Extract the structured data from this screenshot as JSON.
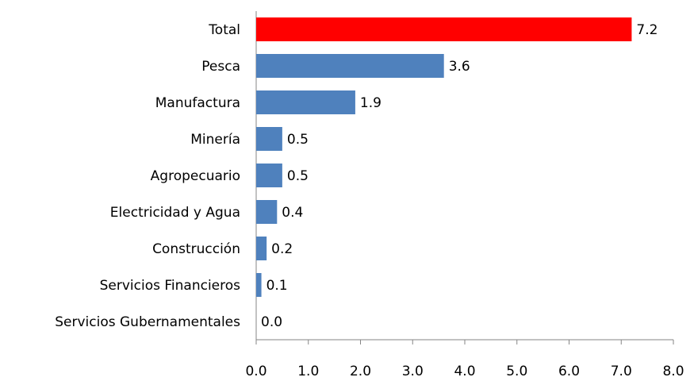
{
  "chart_data": {
    "type": "bar",
    "orientation": "horizontal",
    "categories": [
      "Total",
      "Pesca",
      "Manufactura",
      "Minería",
      "Agropecuario",
      "Electricidad y Agua",
      "Construcción",
      "Servicios Financieros",
      "Servicios Gubernamentales"
    ],
    "values": [
      7.2,
      3.6,
      1.9,
      0.5,
      0.5,
      0.4,
      0.2,
      0.1,
      0.0
    ],
    "value_labels": [
      "7.2",
      "3.6",
      "1.9",
      "0.5",
      "0.5",
      "0.4",
      "0.2",
      "0.1",
      "0.0"
    ],
    "colors": [
      "#ff0000",
      "#4f81bd",
      "#4f81bd",
      "#4f81bd",
      "#4f81bd",
      "#4f81bd",
      "#4f81bd",
      "#4f81bd",
      "#4f81bd"
    ],
    "xlim": [
      0,
      8
    ],
    "xticks": [
      {
        "value": 0,
        "label": "0.0"
      },
      {
        "value": 1,
        "label": "1.0"
      },
      {
        "value": 2,
        "label": "2.0"
      },
      {
        "value": 3,
        "label": "3.0"
      },
      {
        "value": 4,
        "label": "4.0"
      },
      {
        "value": 5,
        "label": "5.0"
      },
      {
        "value": 6,
        "label": "6.0"
      },
      {
        "value": 7,
        "label": "7.0"
      },
      {
        "value": 8,
        "label": "8.0"
      }
    ],
    "grid": false
  }
}
